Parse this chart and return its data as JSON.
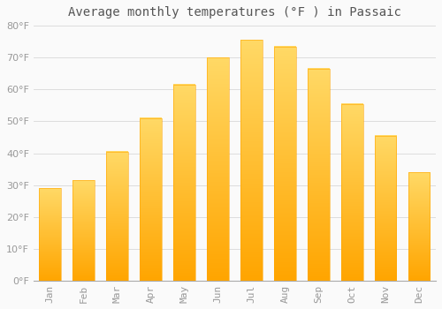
{
  "title": "Average monthly temperatures (°F ) in Passaic",
  "months": [
    "Jan",
    "Feb",
    "Mar",
    "Apr",
    "May",
    "Jun",
    "Jul",
    "Aug",
    "Sep",
    "Oct",
    "Nov",
    "Dec"
  ],
  "values": [
    29,
    31.5,
    40.5,
    51,
    61.5,
    70,
    75.5,
    73.5,
    66.5,
    55.5,
    45.5,
    34
  ],
  "bar_color_top": "#FFD966",
  "bar_color_bottom": "#FFA500",
  "background_color": "#FAFAFA",
  "grid_color": "#DDDDDD",
  "ylim": [
    0,
    80
  ],
  "yticks": [
    0,
    10,
    20,
    30,
    40,
    50,
    60,
    70,
    80
  ],
  "ylabel_suffix": "°F",
  "title_fontsize": 10,
  "tick_fontsize": 8,
  "tick_label_color": "#999999",
  "title_color": "#555555",
  "bar_width": 0.65
}
